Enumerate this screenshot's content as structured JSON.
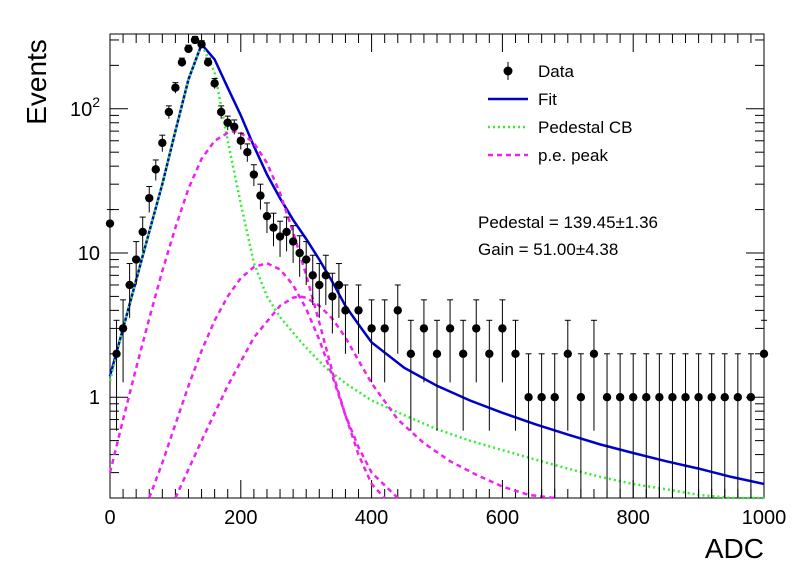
{
  "chart_data": {
    "type": "scatter",
    "xlabel": "ADC",
    "ylabel": "Events",
    "xlim": [
      0,
      1000
    ],
    "ylim": [
      0.2,
      330
    ],
    "y_scale": "log",
    "x_ticks": [
      {
        "value": 0,
        "label": "0"
      },
      {
        "value": 200,
        "label": "200"
      },
      {
        "value": 400,
        "label": "400"
      },
      {
        "value": 600,
        "label": "600"
      },
      {
        "value": 800,
        "label": "800"
      },
      {
        "value": 1000,
        "label": "1000"
      }
    ],
    "y_ticks": [
      {
        "value": 1,
        "label": "1"
      },
      {
        "value": 10,
        "label": "10"
      },
      {
        "value": 100,
        "label": "10",
        "sup": "2"
      }
    ],
    "legend": {
      "position": "top-right",
      "entries": [
        {
          "label": "Data",
          "style": "marker",
          "color": "#000000"
        },
        {
          "label": "Fit",
          "style": "line",
          "color": "#0000cc"
        },
        {
          "label": "Pedestal CB",
          "style": "dotted",
          "color": "#33ee33"
        },
        {
          "label": "p.e. peak",
          "style": "dashed",
          "color": "#ee22ee"
        }
      ]
    },
    "annotations": [
      {
        "key": "Pedestal",
        "value": "139.45",
        "pm": "±",
        "error": "1.36"
      },
      {
        "key": "Gain",
        "value": "51.00",
        "pm": "±",
        "error": "4.38"
      }
    ],
    "series": [
      {
        "name": "Data",
        "style": "points-with-errors",
        "color": "#000000",
        "x": [
          0,
          10,
          20,
          30,
          40,
          50,
          60,
          70,
          80,
          90,
          100,
          110,
          120,
          130,
          140,
          150,
          160,
          170,
          180,
          190,
          200,
          210,
          220,
          230,
          240,
          250,
          260,
          270,
          280,
          290,
          300,
          310,
          320,
          330,
          340,
          350,
          360,
          380,
          400,
          420,
          440,
          460,
          480,
          500,
          520,
          540,
          560,
          580,
          600,
          620,
          640,
          660,
          680,
          700,
          720,
          740,
          760,
          780,
          800,
          820,
          840,
          860,
          880,
          900,
          920,
          940,
          960,
          980,
          1000
        ],
        "y": [
          16,
          2,
          3,
          6,
          9,
          14,
          24,
          38,
          58,
          95,
          140,
          210,
          260,
          300,
          280,
          210,
          150,
          95,
          80,
          75,
          60,
          50,
          35,
          25,
          18,
          15,
          13,
          14,
          12,
          10,
          9,
          7,
          6,
          7,
          5,
          6,
          4,
          4,
          3,
          3,
          4,
          2,
          3,
          2,
          3,
          2,
          3,
          2,
          3,
          2,
          1,
          1,
          1,
          2,
          1,
          2,
          1,
          1,
          1,
          1,
          1,
          1,
          1,
          1,
          1,
          1,
          1,
          1,
          2
        ]
      },
      {
        "name": "Fit",
        "style": "line",
        "color": "#0000cc",
        "x": [
          0,
          20,
          40,
          60,
          80,
          100,
          120,
          140,
          160,
          180,
          200,
          220,
          240,
          260,
          280,
          300,
          320,
          340,
          360,
          380,
          400,
          450,
          500,
          550,
          600,
          650,
          700,
          750,
          800,
          850,
          900,
          950,
          1000
        ],
        "y": [
          1.4,
          3,
          6.5,
          14,
          30,
          70,
          160,
          280,
          220,
          140,
          90,
          55,
          35,
          24,
          17,
          12.5,
          9,
          6.3,
          4.3,
          3.2,
          2.4,
          1.6,
          1.2,
          0.95,
          0.78,
          0.65,
          0.55,
          0.47,
          0.41,
          0.36,
          0.32,
          0.28,
          0.25
        ]
      },
      {
        "name": "Pedestal CB",
        "style": "dotted",
        "color": "#33ee33",
        "x": [
          0,
          20,
          40,
          60,
          80,
          100,
          120,
          140,
          160,
          180,
          200,
          220,
          240,
          260,
          280,
          300,
          330,
          360,
          400,
          450,
          500,
          550,
          600,
          650,
          700,
          750,
          800,
          850,
          900,
          950,
          1000
        ],
        "y": [
          1.3,
          3,
          6.5,
          14,
          30,
          70,
          160,
          280,
          180,
          60,
          22,
          8.5,
          5,
          3.6,
          2.8,
          2.2,
          1.6,
          1.25,
          0.95,
          0.75,
          0.6,
          0.5,
          0.43,
          0.37,
          0.32,
          0.28,
          0.25,
          0.23,
          0.21,
          0.2,
          0.19
        ]
      },
      {
        "name": "p.e. peak 1",
        "style": "dashed",
        "color": "#ee22ee",
        "x": [
          0,
          20,
          40,
          60,
          80,
          100,
          120,
          140,
          160,
          180,
          190,
          200,
          220,
          240,
          260,
          280,
          300,
          320,
          340,
          360,
          380,
          400,
          420
        ],
        "y": [
          0.3,
          0.7,
          1.6,
          3.5,
          7.5,
          15,
          28,
          45,
          60,
          68,
          70,
          68,
          58,
          42,
          26,
          14,
          7,
          3.3,
          1.5,
          0.75,
          0.4,
          0.25,
          0.2
        ]
      },
      {
        "name": "p.e. peak 2",
        "style": "dashed",
        "color": "#ee22ee",
        "x": [
          60,
          80,
          100,
          120,
          140,
          160,
          180,
          200,
          220,
          240,
          260,
          280,
          300,
          320,
          340,
          360,
          380,
          400,
          440
        ],
        "y": [
          0.2,
          0.35,
          0.65,
          1.2,
          2.1,
          3.4,
          5,
          6.7,
          8,
          8.5,
          7.7,
          6,
          4.1,
          2.5,
          1.4,
          0.75,
          0.45,
          0.3,
          0.2
        ]
      },
      {
        "name": "p.e. peak 3",
        "style": "dashed",
        "color": "#ee22ee",
        "x": [
          100,
          140,
          180,
          220,
          260,
          280,
          290,
          300,
          320,
          340,
          360,
          380,
          400,
          440,
          480,
          520,
          560,
          600,
          640,
          680
        ],
        "y": [
          0.2,
          0.5,
          1.2,
          2.6,
          4.3,
          4.9,
          5,
          4.9,
          4.3,
          3.5,
          2.6,
          1.8,
          1.25,
          0.7,
          0.48,
          0.36,
          0.29,
          0.24,
          0.21,
          0.2
        ]
      }
    ]
  }
}
